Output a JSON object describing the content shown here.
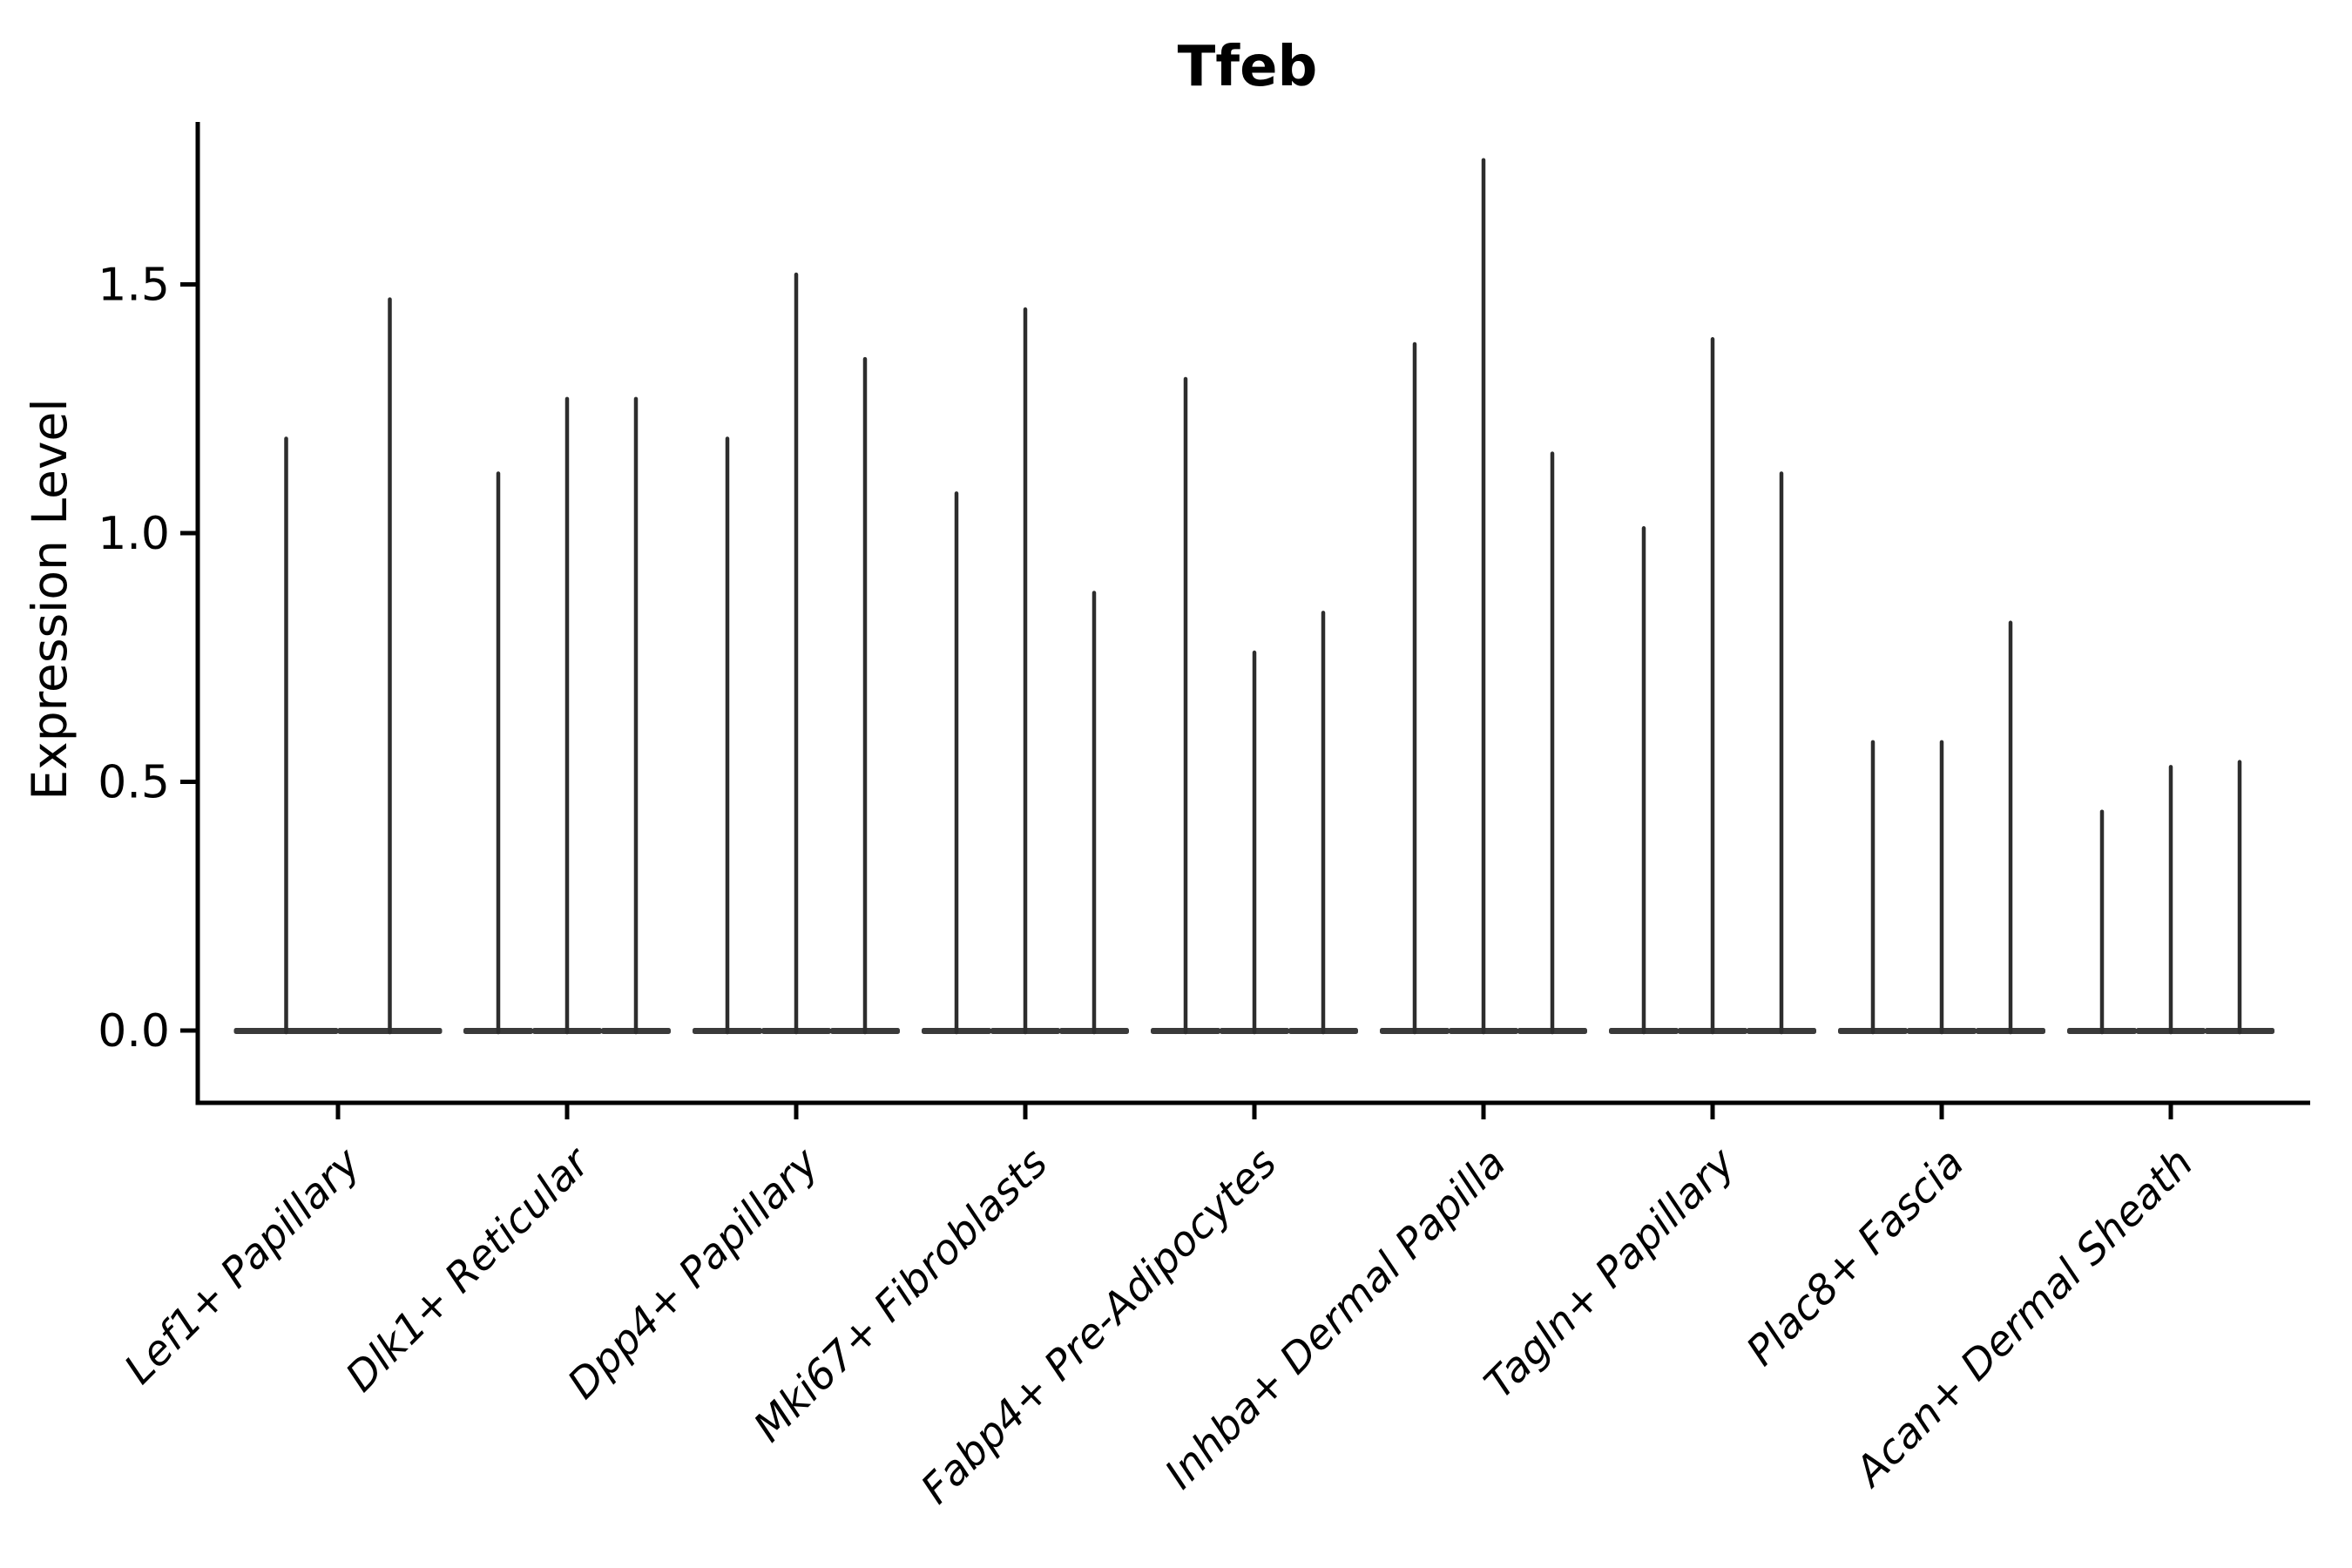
{
  "title": "Tfeb",
  "axes": {
    "y_label": "Expression Level"
  },
  "colors": {
    "background": "#ffffff",
    "violin_fill": "#3a3a3a",
    "violin_edge": "#2d2d2d",
    "axis_line": "#000000",
    "text": "#000000"
  },
  "chart_data": {
    "type": "violin",
    "title": "Tfeb",
    "ylabel": "Expression Level",
    "xlabel": "",
    "ylim": [
      -0.05,
      1.85
    ],
    "grid": false,
    "legend": "none",
    "baseline_value": 0.0,
    "yticks": [
      {
        "label": "0.0",
        "value": 0.0
      },
      {
        "label": "0.5",
        "value": 0.5
      },
      {
        "label": "1.0",
        "value": 1.0
      },
      {
        "label": "1.5",
        "value": 1.5
      }
    ],
    "categories": [
      "Lef1+ Papillary",
      "Dlk1+ Reticular",
      "Dpp4+ Papillary",
      "Mki67+ Fibroblasts",
      "Fabp4+ Pre-Adipocytes",
      "Inhba+ Dermal Papilla",
      "Tagln+ Papillary",
      "Plac8+ Fascia",
      "Acan+ Dermal Sheath"
    ],
    "series": [
      {
        "category": "Lef1+ Papillary",
        "violin_peaks": [
          1.19,
          1.47
        ]
      },
      {
        "category": "Dlk1+ Reticular",
        "violin_peaks": [
          1.12,
          1.27,
          1.27
        ]
      },
      {
        "category": "Dpp4+ Papillary",
        "violin_peaks": [
          1.19,
          1.52,
          1.35
        ]
      },
      {
        "category": "Mki67+ Fibroblasts",
        "violin_peaks": [
          1.08,
          1.45,
          0.88
        ]
      },
      {
        "category": "Fabp4+ Pre-Adipocytes",
        "violin_peaks": [
          1.31,
          0.76,
          0.84
        ]
      },
      {
        "category": "Inhba+ Dermal Papilla",
        "violin_peaks": [
          1.38,
          1.75,
          1.16
        ]
      },
      {
        "category": "Tagln+ Papillary",
        "violin_peaks": [
          1.01,
          1.39,
          1.12
        ]
      },
      {
        "category": "Plac8+ Fascia",
        "violin_peaks": [
          0.58,
          0.58,
          0.82
        ]
      },
      {
        "category": "Acan+ Dermal Sheath",
        "violin_peaks": [
          0.44,
          0.53,
          0.54
        ]
      }
    ],
    "violin_shape_note": "needle-thin violins: wide flat bulge at 0, hair-thin spike up to the peak value"
  }
}
